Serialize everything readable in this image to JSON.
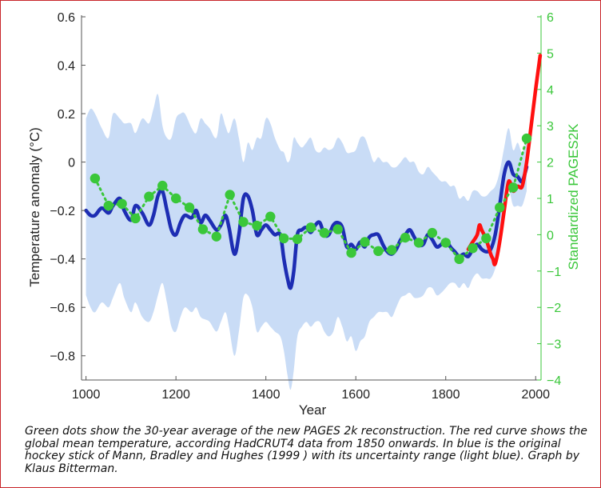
{
  "chart_data": {
    "type": "line",
    "xlabel": "Year",
    "ylabel": "Temperature anomaly (°C)",
    "y2label": "Standardized PAGES2K",
    "xlim": [
      990,
      2012
    ],
    "ylim": [
      -0.9,
      0.6
    ],
    "y2lim": [
      -4,
      6
    ],
    "xticks": [
      1000,
      1200,
      1400,
      1600,
      1800,
      2000
    ],
    "yticks": [
      -0.8,
      -0.6,
      -0.4,
      -0.2,
      0,
      0.2,
      0.4,
      0.6
    ],
    "y2ticks": [
      -4,
      -3,
      -2,
      -1,
      0,
      1,
      2,
      3,
      4,
      5,
      6
    ],
    "ytick_labels": [
      "−0.8",
      "−0.6",
      "−0.4",
      "−0.2",
      "0",
      "0.2",
      "0.4",
      "0.6"
    ],
    "y2tick_labels": [
      "−4",
      "−3",
      "−2",
      "−1",
      "0",
      "1",
      "2",
      "3",
      "4",
      "5",
      "6"
    ],
    "colors": {
      "band": "#c9dcf6",
      "blue": "#1d2db3",
      "red": "#ff1010",
      "green": "#3ac73a",
      "axis": "#555555"
    },
    "series": [
      {
        "name": "Mann, Bradley and Hughes (1999)",
        "axis": "left",
        "x": [
          1000,
          1010,
          1020,
          1035,
          1050,
          1060,
          1075,
          1085,
          1100,
          1110,
          1125,
          1140,
          1150,
          1160,
          1170,
          1180,
          1190,
          1200,
          1210,
          1220,
          1235,
          1245,
          1255,
          1265,
          1275,
          1290,
          1300,
          1310,
          1318,
          1330,
          1340,
          1350,
          1360,
          1370,
          1380,
          1390,
          1400,
          1410,
          1420,
          1432,
          1440,
          1448,
          1455,
          1462,
          1470,
          1480,
          1490,
          1500,
          1510,
          1520,
          1530,
          1540,
          1550,
          1560,
          1570,
          1580,
          1590,
          1600,
          1610,
          1620,
          1630,
          1640,
          1650,
          1660,
          1670,
          1680,
          1690,
          1700,
          1710,
          1720,
          1730,
          1740,
          1750,
          1760,
          1770,
          1780,
          1790,
          1800,
          1810,
          1820,
          1830,
          1840,
          1850,
          1860,
          1870,
          1880,
          1890,
          1900,
          1910,
          1920,
          1930,
          1940,
          1950,
          1960,
          1970,
          1980
        ],
        "y": [
          -0.2,
          -0.22,
          -0.22,
          -0.19,
          -0.21,
          -0.18,
          -0.15,
          -0.2,
          -0.24,
          -0.18,
          -0.21,
          -0.26,
          -0.22,
          -0.14,
          -0.12,
          -0.2,
          -0.28,
          -0.3,
          -0.25,
          -0.22,
          -0.23,
          -0.2,
          -0.25,
          -0.22,
          -0.24,
          -0.28,
          -0.26,
          -0.22,
          -0.27,
          -0.38,
          -0.3,
          -0.15,
          -0.14,
          -0.2,
          -0.3,
          -0.28,
          -0.26,
          -0.28,
          -0.3,
          -0.3,
          -0.4,
          -0.48,
          -0.52,
          -0.45,
          -0.3,
          -0.28,
          -0.27,
          -0.29,
          -0.26,
          -0.25,
          -0.3,
          -0.3,
          -0.26,
          -0.25,
          -0.27,
          -0.35,
          -0.34,
          -0.36,
          -0.33,
          -0.35,
          -0.31,
          -0.3,
          -0.3,
          -0.34,
          -0.37,
          -0.38,
          -0.36,
          -0.32,
          -0.3,
          -0.28,
          -0.31,
          -0.34,
          -0.34,
          -0.3,
          -0.32,
          -0.35,
          -0.34,
          -0.32,
          -0.35,
          -0.37,
          -0.39,
          -0.38,
          -0.39,
          -0.36,
          -0.34,
          -0.36,
          -0.37,
          -0.36,
          -0.3,
          -0.18,
          -0.05,
          0.0,
          -0.05,
          -0.06,
          -0.08,
          -0.02
        ]
      },
      {
        "name": "HadCRUT4 global mean temperature",
        "axis": "left",
        "x": [
          1850,
          1860,
          1870,
          1875,
          1880,
          1890,
          1900,
          1905,
          1910,
          1920,
          1930,
          1940,
          1950,
          1960,
          1970,
          1980,
          1990,
          2000,
          2010
        ],
        "y": [
          -0.36,
          -0.33,
          -0.3,
          -0.26,
          -0.28,
          -0.32,
          -0.38,
          -0.4,
          -0.42,
          -0.33,
          -0.2,
          -0.08,
          -0.12,
          -0.1,
          -0.1,
          0.0,
          0.15,
          0.3,
          0.44
        ]
      },
      {
        "name": "PAGES 2k 30-year average",
        "axis": "right",
        "x": [
          1020,
          1050,
          1080,
          1110,
          1140,
          1170,
          1200,
          1230,
          1260,
          1290,
          1320,
          1350,
          1380,
          1410,
          1440,
          1470,
          1500,
          1530,
          1560,
          1590,
          1620,
          1650,
          1680,
          1710,
          1740,
          1770,
          1800,
          1830,
          1860,
          1890,
          1920,
          1950,
          1980
        ],
        "y": [
          1.55,
          0.8,
          0.85,
          0.45,
          1.05,
          1.35,
          1.0,
          0.75,
          0.15,
          -0.05,
          1.1,
          0.35,
          0.25,
          0.5,
          -0.1,
          -0.12,
          0.2,
          0.05,
          0.15,
          -0.5,
          -0.2,
          -0.45,
          -0.42,
          -0.08,
          -0.22,
          0.05,
          -0.22,
          -0.67,
          -0.37,
          -0.1,
          0.75,
          1.3,
          2.65
        ]
      }
    ],
    "band_upper": [
      0.18,
      0.22,
      0.2,
      0.14,
      0.1,
      0.2,
      0.18,
      0.16,
      0.16,
      0.12,
      0.18,
      0.16,
      0.22,
      0.28,
      0.15,
      0.1,
      0.1,
      0.18,
      0.2,
      0.2,
      0.14,
      0.12,
      0.18,
      0.16,
      0.14,
      0.1,
      0.2,
      0.15,
      0.12,
      0.18,
      0.1,
      0.0,
      0.08,
      0.05,
      0.1,
      0.1,
      0.18,
      0.16,
      0.1,
      0.05,
      0.04,
      0.0,
      0.02,
      0.1,
      0.08,
      0.06,
      0.08,
      0.1,
      0.05,
      0.04,
      0.06,
      0.05,
      0.06,
      0.1,
      0.08,
      0.04,
      0.04,
      0.05,
      0.1,
      0.1,
      0.05,
      0.0,
      0.02,
      0.0,
      0.0,
      -0.02,
      -0.02,
      0.0,
      0.02,
      0.0,
      0.0,
      -0.04,
      -0.05,
      -0.02,
      -0.04,
      -0.06,
      -0.08,
      -0.08,
      -0.1,
      -0.1,
      -0.15,
      -0.14,
      -0.16,
      -0.12,
      -0.12,
      -0.14,
      -0.14,
      -0.12,
      -0.1,
      -0.04,
      0.06,
      0.14,
      0.05,
      0.08,
      0.04,
      0.1
    ],
    "band_lower": [
      -0.55,
      -0.6,
      -0.62,
      -0.58,
      -0.6,
      -0.56,
      -0.5,
      -0.56,
      -0.62,
      -0.58,
      -0.64,
      -0.66,
      -0.62,
      -0.55,
      -0.5,
      -0.58,
      -0.68,
      -0.7,
      -0.64,
      -0.6,
      -0.62,
      -0.6,
      -0.64,
      -0.65,
      -0.66,
      -0.7,
      -0.66,
      -0.62,
      -0.68,
      -0.8,
      -0.7,
      -0.56,
      -0.55,
      -0.6,
      -0.7,
      -0.68,
      -0.66,
      -0.68,
      -0.7,
      -0.72,
      -0.78,
      -0.88,
      -0.94,
      -0.86,
      -0.72,
      -0.68,
      -0.66,
      -0.68,
      -0.66,
      -0.66,
      -0.7,
      -0.72,
      -0.7,
      -0.64,
      -0.68,
      -0.74,
      -0.72,
      -0.78,
      -0.74,
      -0.72,
      -0.66,
      -0.64,
      -0.62,
      -0.62,
      -0.62,
      -0.64,
      -0.6,
      -0.56,
      -0.55,
      -0.54,
      -0.56,
      -0.56,
      -0.55,
      -0.52,
      -0.52,
      -0.55,
      -0.54,
      -0.52,
      -0.5,
      -0.5,
      -0.52,
      -0.5,
      -0.52,
      -0.48,
      -0.46,
      -0.48,
      -0.48,
      -0.48,
      -0.44,
      -0.36,
      -0.22,
      -0.12,
      -0.18,
      -0.18,
      -0.18,
      -0.12
    ]
  },
  "caption": "Green dots show the 30-year average of the new PAGES 2k reconstruction. The red curve shows the global mean temperature, according HadCRUT4 data from 1850 onwards. In blue is the original hockey stick of Mann, Bradley and Hughes (1999 ) with its uncertainty range (light blue). Graph by Klaus Bitterman."
}
